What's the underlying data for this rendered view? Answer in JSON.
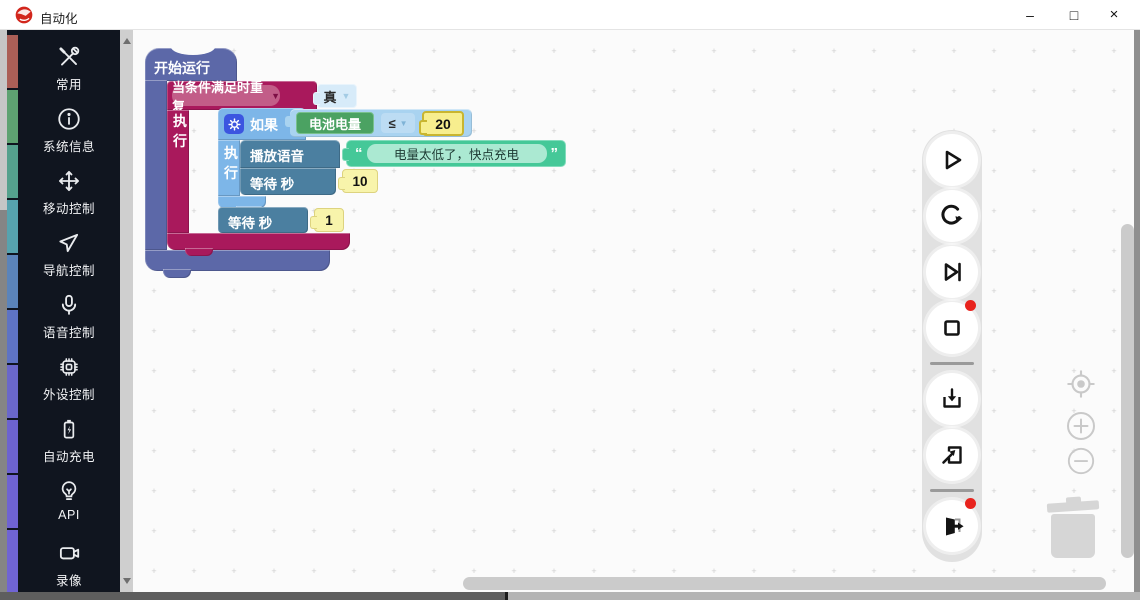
{
  "window": {
    "title": "自动化",
    "controls": {
      "minimize": "–",
      "maximize": "□",
      "close": "×"
    }
  },
  "sidebar": {
    "strip_colors": [
      "#ab5f57",
      "#5ea271",
      "#55a18d",
      "#57a3ae",
      "#5b84ba",
      "#5e73c4",
      "#6a67ca",
      "#6d63cf",
      "#6f63d2",
      "#7064d4"
    ],
    "items": [
      {
        "label": "常用",
        "icon": "tools-icon"
      },
      {
        "label": "系统信息",
        "icon": "info-icon"
      },
      {
        "label": "移动控制",
        "icon": "move-icon"
      },
      {
        "label": "导航控制",
        "icon": "navigation-icon"
      },
      {
        "label": "语音控制",
        "icon": "microphone-icon"
      },
      {
        "label": "外设控制",
        "icon": "chip-icon"
      },
      {
        "label": "自动充电",
        "icon": "battery-charge-icon"
      },
      {
        "label": "API",
        "icon": "bulb-icon"
      },
      {
        "label": "录像",
        "icon": "camera-icon"
      }
    ]
  },
  "blocks": {
    "start": {
      "label": "开始运行",
      "color": "#5c68a8"
    },
    "repeat": {
      "field_label": "当条件满足时重复",
      "do_label": "执行",
      "color": "#a9195c",
      "condition_value": "真",
      "condition_color": "#d7ebf9"
    },
    "if": {
      "label": "如果",
      "do_label": "执行",
      "color": "#7db6e8",
      "variable": "电池电量",
      "variable_color": "#4ba262",
      "operator": "≤",
      "threshold": "20",
      "threshold_color": "#f7ee8e",
      "comparison_color": "#a9d3f0"
    },
    "play_voice": {
      "label": "播放语音",
      "color": "#4b7fa0",
      "open_quote": "“",
      "text": "电量太低了，快点充电",
      "close_quote": "”",
      "string_color": "#45c898"
    },
    "wait_inner": {
      "label": "等待 秒",
      "seconds": "10",
      "color": "#4b7fa0"
    },
    "wait_outer": {
      "label": "等待 秒",
      "seconds": "1",
      "color": "#4b7fa0"
    }
  },
  "run_toolbar": {
    "buttons": [
      "run",
      "restart",
      "step",
      "stop",
      "save",
      "import",
      "exit"
    ],
    "badge_color": "#e8231d"
  },
  "canvas_controls": [
    "zoom-reset",
    "zoom-in",
    "zoom-out",
    "trash"
  ],
  "colors": {
    "canvas_bg": "#fbfbfb",
    "sidebar_bg": "#10151f",
    "toolbar_bg": "#e1e1e1",
    "logo_red": "#d2261c"
  }
}
